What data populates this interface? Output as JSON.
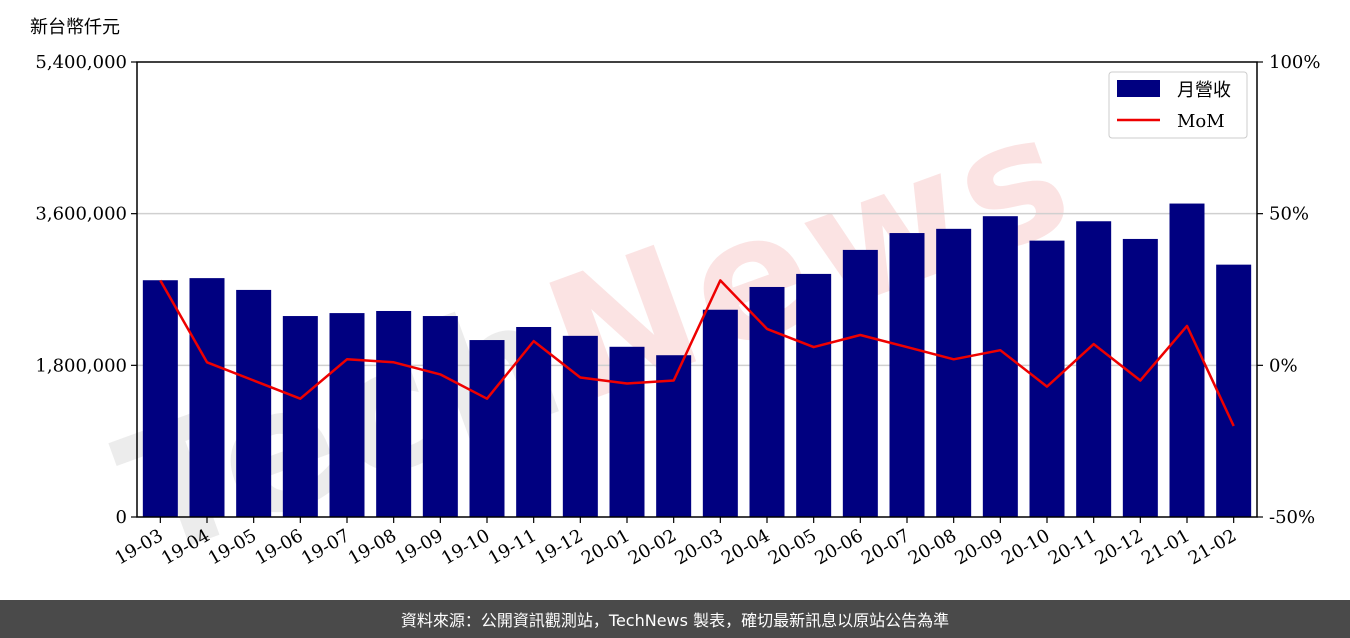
{
  "chart_data": {
    "type": "bar",
    "unit_label": "新台幣仟元",
    "categories": [
      "19-03",
      "19-04",
      "19-05",
      "19-06",
      "19-07",
      "19-08",
      "19-09",
      "19-10",
      "19-11",
      "19-12",
      "20-01",
      "20-02",
      "20-03",
      "20-04",
      "20-05",
      "20-06",
      "20-07",
      "20-08",
      "20-09",
      "20-10",
      "20-11",
      "20-12",
      "21-01",
      "21-02"
    ],
    "series": [
      {
        "name": "月營收",
        "type": "bar",
        "axis": "left",
        "color": "#000080",
        "values": [
          2810000,
          2835000,
          2695000,
          2385000,
          2420000,
          2445000,
          2385000,
          2100000,
          2255000,
          2150000,
          2020000,
          1920000,
          2460000,
          2730000,
          2885000,
          3170000,
          3370000,
          3420000,
          3570000,
          3280000,
          3510000,
          3300000,
          3720000,
          2995000
        ]
      },
      {
        "name": "MoM",
        "type": "line",
        "axis": "right",
        "color": "#ee0000",
        "values": [
          28,
          1,
          -5,
          -11,
          2,
          1,
          -3,
          -11,
          8,
          -4,
          -6,
          -5,
          28,
          12,
          6,
          10,
          6,
          2,
          5,
          -7,
          7,
          -5,
          13,
          -20
        ]
      }
    ],
    "y_left": {
      "min": 0,
      "max": 5400000,
      "ticks": [
        0,
        1800000,
        3600000,
        5400000
      ],
      "tick_labels": [
        "0",
        "1,800,000",
        "3,600,000",
        "5,400,000"
      ]
    },
    "y_right": {
      "min": -50,
      "max": 100,
      "ticks": [
        -50,
        0,
        50,
        100
      ],
      "tick_labels": [
        "-50%",
        "0%",
        "50%",
        "100%"
      ]
    },
    "grid": "horizontal",
    "legend_position": "top-right"
  },
  "watermark": {
    "text": "TechNews"
  },
  "footer": {
    "text": "資料來源：公開資訊觀測站，TechNews 製表，確切最新訊息以原站公告為準"
  }
}
